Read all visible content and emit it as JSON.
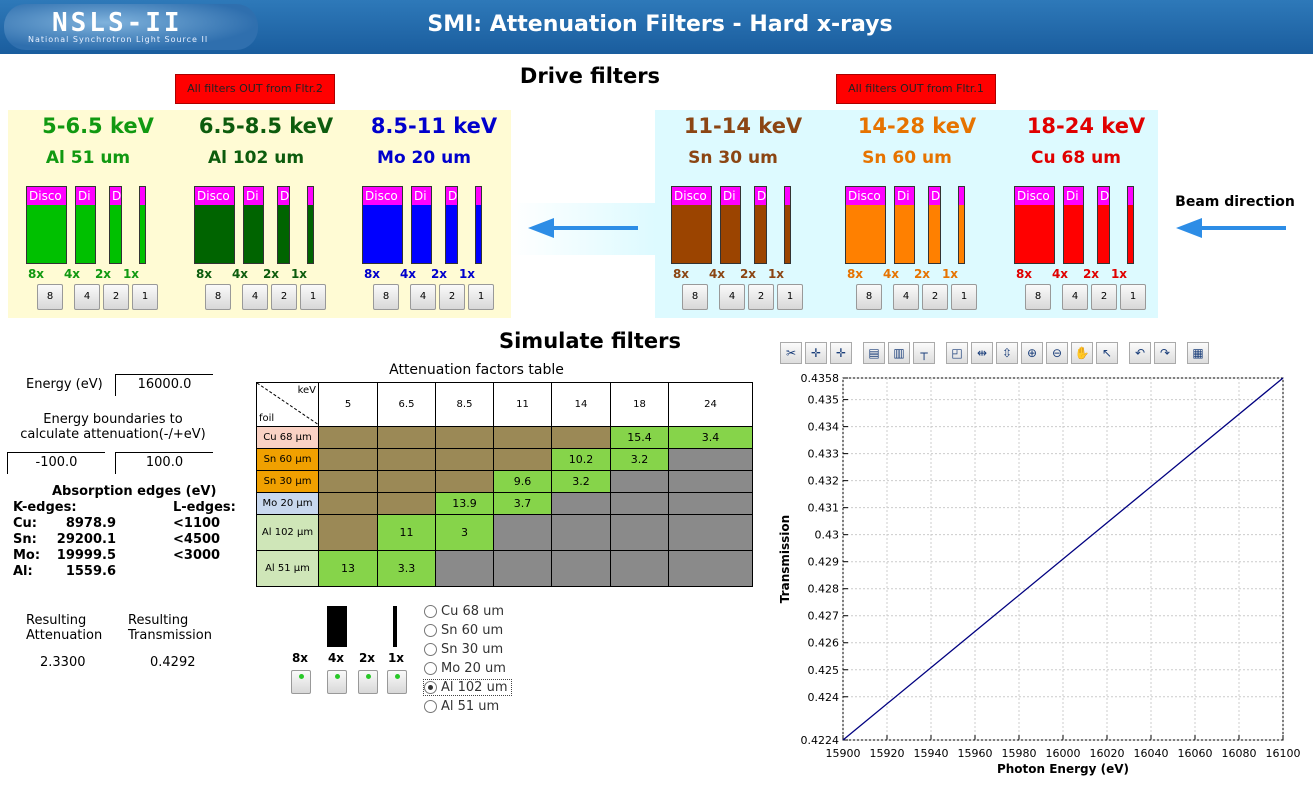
{
  "header": {
    "logo_text": "NSLS-II",
    "logo_sub": "National Synchrotron Light Source II",
    "title": "SMI: Attenuation Filters - Hard x-rays"
  },
  "drive": {
    "title": "Drive filters",
    "btn_left": "All filters OUT from Fltr.2",
    "btn_right": "All filters OUT from Fltr.1",
    "beam_direction": "Beam direction",
    "groups": [
      {
        "energy": "5-6.5 keV",
        "foil": "Al 51 um",
        "color": "#00c000",
        "label_color": "#119911",
        "fill": [
          0.85,
          0.85,
          0.85,
          0.85
        ]
      },
      {
        "energy": "6.5-8.5 keV",
        "foil": "Al 102 um",
        "color": "#006400",
        "label_color": "#0d5c0d",
        "fill": [
          0.85,
          0.85,
          0.85,
          0.85
        ]
      },
      {
        "energy": "8.5-11 keV",
        "foil": "Mo 20 um",
        "color": "#0000ff",
        "label_color": "#0000cc",
        "fill": [
          0.85,
          0.85,
          0.85,
          0.85
        ]
      },
      {
        "energy": "11-14 keV",
        "foil": "Sn 30 um",
        "color": "#9b4400",
        "label_color": "#8b4513",
        "fill": [
          0.85,
          0.85,
          0.85,
          0.85
        ]
      },
      {
        "energy": "14-28 keV",
        "foil": "Sn 60 um",
        "color": "#ff8000",
        "label_color": "#e67300",
        "fill": [
          0.85,
          0.85,
          0.85,
          0.85
        ]
      },
      {
        "energy": "18-24 keV",
        "foil": "Cu 68 um",
        "color": "#ff0000",
        "label_color": "#e00000",
        "fill": [
          0.85,
          0.85,
          0.85,
          0.85
        ]
      }
    ],
    "disco_labels": [
      "Disco",
      "Di",
      "D",
      ""
    ],
    "mults": [
      "8x",
      "4x",
      "2x",
      "1x"
    ],
    "btn_labels": [
      "8",
      "4",
      "2",
      "1"
    ]
  },
  "simulate": {
    "title": "Simulate filters",
    "energy_label": "Energy (eV)",
    "energy_value": "16000.0",
    "bound_label_1": "Energy boundaries to",
    "bound_label_2": "calculate attenuation(-/+eV)",
    "bound_min": "-100.0",
    "bound_max": "100.0",
    "abs_title": "Absorption edges (eV)",
    "k_title": "K-edges:",
    "l_title": "L-edges:",
    "edges": [
      {
        "el": "Cu:",
        "k": "8978.9",
        "l": "<1100"
      },
      {
        "el": "Sn:",
        "k": "29200.1",
        "l": "<4500"
      },
      {
        "el": "Mo:",
        "k": "19999.5",
        "l": "<3000"
      },
      {
        "el": "Al:",
        "k": "1559.6",
        "l": ""
      }
    ],
    "res_att_1": "Resulting",
    "res_att_2": "Attenuation",
    "res_trans_1": "Resulting",
    "res_trans_2": "Transmission",
    "res_att_val": "2.3300",
    "res_trans_val": "0.4292",
    "mults": [
      "8x",
      "4x",
      "2x",
      "1x"
    ],
    "radios": [
      {
        "label": "Cu 68 um",
        "checked": false
      },
      {
        "label": "Sn 60 um",
        "checked": false
      },
      {
        "label": "Sn 30 um",
        "checked": false
      },
      {
        "label": "Mo 20 um",
        "checked": false
      },
      {
        "label": "Al 102 um",
        "checked": true
      },
      {
        "label": "Al 51 um",
        "checked": false
      }
    ]
  },
  "table": {
    "title": "Attenuation factors table",
    "corner_kev": "keV",
    "corner_foil": "foil",
    "cols": [
      "5",
      "6.5",
      "8.5",
      "11",
      "14",
      "18",
      "24"
    ],
    "rows": [
      {
        "label": "Cu 68 µm",
        "bg": "#fad2c4",
        "cells": [
          "",
          "",
          "",
          "",
          "",
          "15.4",
          "3.4"
        ],
        "kinds": [
          "o",
          "o",
          "o",
          "o",
          "o",
          "g",
          "g"
        ]
      },
      {
        "label": "Sn 60 µm",
        "bg": "#f0a000",
        "cells": [
          "",
          "",
          "",
          "",
          "10.2",
          "3.2",
          ""
        ],
        "kinds": [
          "o",
          "o",
          "o",
          "o",
          "g",
          "g",
          "x"
        ]
      },
      {
        "label": "Sn 30 µm",
        "bg": "#f0a000",
        "cells": [
          "",
          "",
          "",
          "9.6",
          "3.2",
          "",
          ""
        ],
        "kinds": [
          "o",
          "o",
          "o",
          "g",
          "g",
          "x",
          "x"
        ]
      },
      {
        "label": "Mo 20 µm",
        "bg": "#c8d8ee",
        "cells": [
          "",
          "",
          "13.9",
          "3.7",
          "",
          "",
          ""
        ],
        "kinds": [
          "o",
          "o",
          "g",
          "g",
          "x",
          "x",
          "x"
        ]
      },
      {
        "label": "Al 102 µm",
        "bg": "#cfe6b8",
        "cells": [
          "",
          "11",
          "3",
          "",
          "",
          "",
          ""
        ],
        "kinds": [
          "o",
          "g",
          "g",
          "x",
          "x",
          "x",
          "x"
        ]
      },
      {
        "label": "Al 51 µm",
        "bg": "#cfe6b8",
        "cells": [
          "13",
          "3.3",
          "",
          "",
          "",
          "",
          ""
        ],
        "kinds": [
          "g",
          "g",
          "x",
          "x",
          "x",
          "x",
          "x"
        ]
      }
    ]
  },
  "plot": {
    "toolbar": [
      "scissors-icon",
      "zoom-in-x-icon",
      "zoom-out-x-icon",
      "plot-options-icon",
      "legend-icon",
      "crosshair-icon",
      "zoom-box-icon",
      "hfit-icon",
      "vfit-icon",
      "zoom-in-icon",
      "zoom-out-icon",
      "pan-icon",
      "pointer-icon",
      "undo-icon",
      "redo-icon",
      "save-icon"
    ],
    "toolbar_glyphs": [
      "✂",
      "✛",
      "✛",
      "▤",
      "▥",
      "┬",
      "◰",
      "⇹",
      "⇳",
      "⊕",
      "⊖",
      "✋",
      "↖",
      "↶",
      "↷",
      "▦"
    ],
    "chart_data": {
      "type": "line",
      "x": [
        15900,
        16100
      ],
      "y": [
        0.4224,
        0.4358
      ],
      "xlabel": "Photon Energy (eV)",
      "ylabel": "Transmission",
      "xlim": [
        15900,
        16100
      ],
      "ylim": [
        0.4224,
        0.4358
      ],
      "xticks": [
        "15900",
        "15920",
        "15940",
        "15960",
        "15980",
        "16000",
        "16020",
        "16040",
        "16060",
        "16080",
        "16100"
      ],
      "yticks": [
        "0.4224",
        "0.424",
        "0.425",
        "0.426",
        "0.427",
        "0.428",
        "0.429",
        "0.43",
        "0.431",
        "0.432",
        "0.433",
        "0.434",
        "0.435",
        "0.4358"
      ],
      "grid": true,
      "color": "#000080"
    }
  }
}
